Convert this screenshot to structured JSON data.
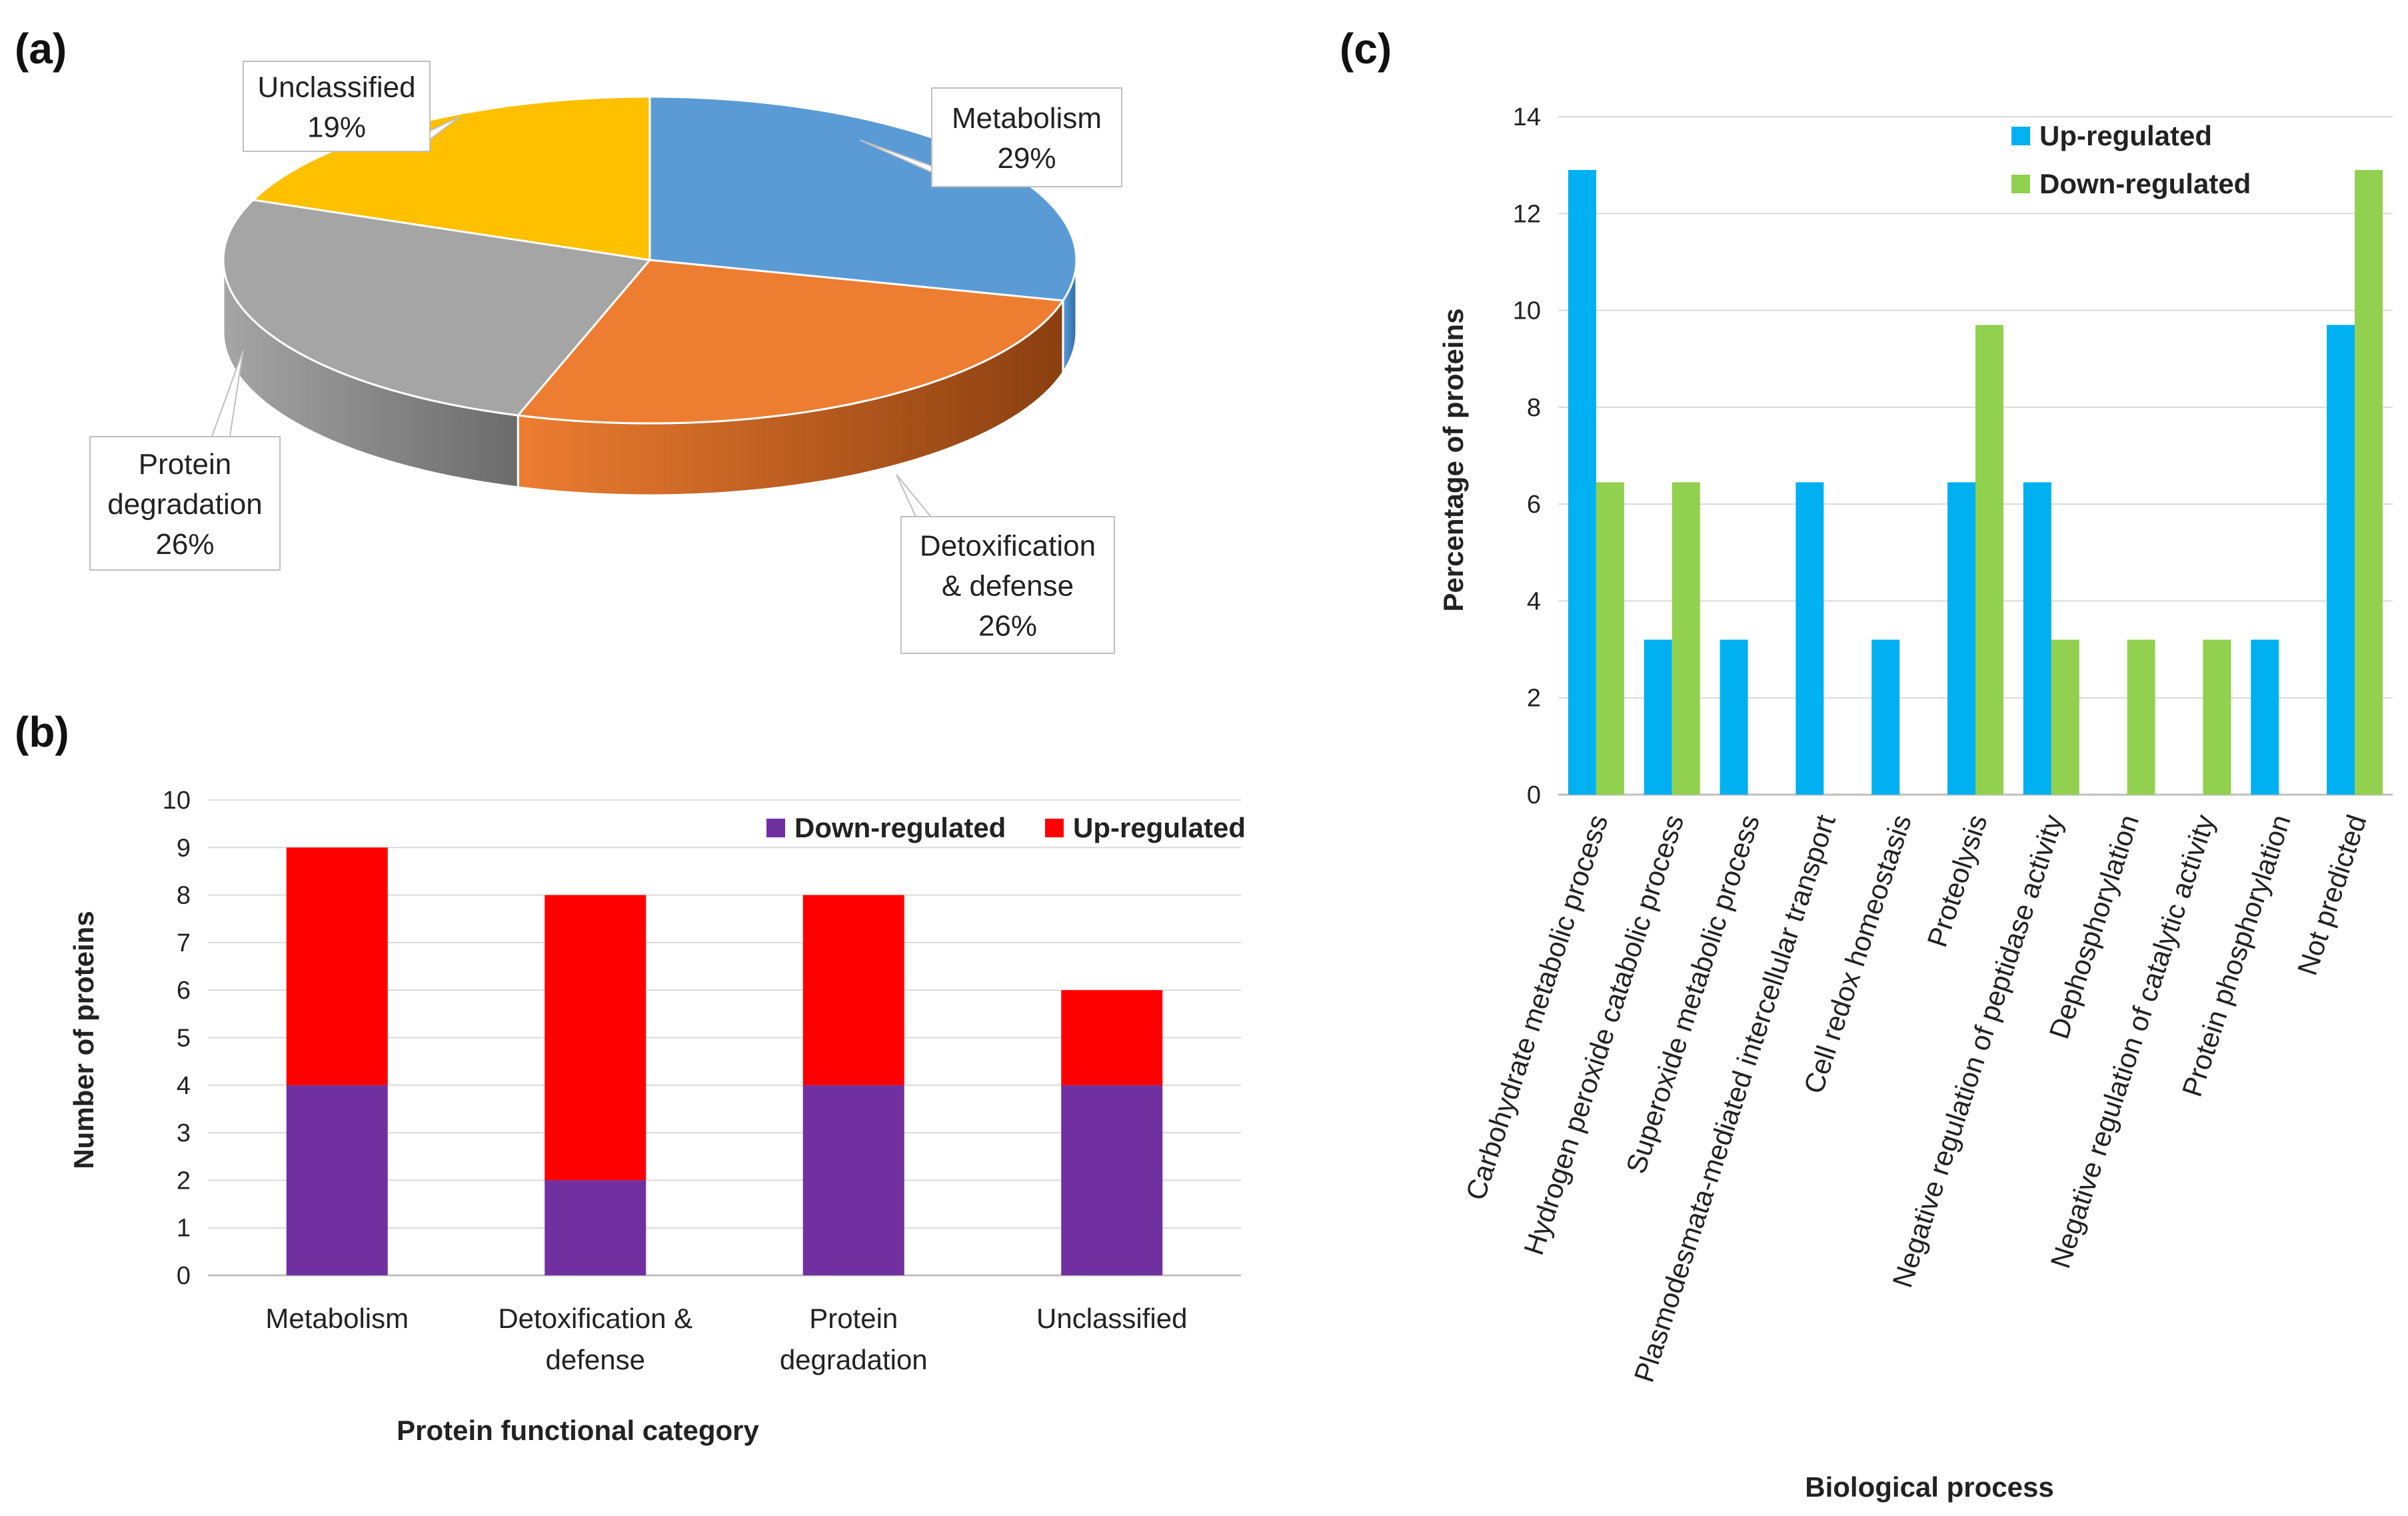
{
  "panels": {
    "a": "(a)",
    "b": "(b)",
    "c": "(c)"
  },
  "chart_data": [
    {
      "panel": "(a)",
      "type": "pie",
      "slices": [
        {
          "label": "Metabolism",
          "value": 29,
          "display": "29%",
          "color": "#5b9bd5",
          "side": "#2e6ba8"
        },
        {
          "label": "Detoxification & defense",
          "value": 26,
          "display": "26%",
          "color": "#ed7d31",
          "side": "#8a3f10"
        },
        {
          "label": "Protein degradation",
          "value": 26,
          "display": "26%",
          "color": "#a5a5a5",
          "side": "#6b6b6b"
        },
        {
          "label": "Unclassified",
          "value": 19,
          "display": "19%",
          "color": "#ffc000",
          "side": "#b38600"
        }
      ]
    },
    {
      "panel": "(b)",
      "type": "bar",
      "stacked": true,
      "categories": [
        "Metabolism",
        "Detoxification & defense",
        "Protein degradation",
        "Unclassified"
      ],
      "series": [
        {
          "name": "Down-regulated",
          "values": [
            4,
            2,
            4,
            4
          ],
          "color": "#7030a0"
        },
        {
          "name": "Up-regulated",
          "values": [
            5,
            6,
            4,
            2
          ],
          "color": "#ff0000"
        }
      ],
      "xlabel": "Protein functional category",
      "ylabel": "Number of proteins",
      "ylim": [
        0,
        10
      ],
      "yticks": [
        "0",
        "1",
        "2",
        "3",
        "4",
        "5",
        "6",
        "7",
        "8",
        "9",
        "10"
      ],
      "legend": "top-right"
    },
    {
      "panel": "(c)",
      "type": "bar",
      "stacked": false,
      "categories": [
        "Carbohydrate metabolic process",
        "Hydrogen peroxide catabolic process",
        "Superoxide metabolic process",
        "Plasmodesmata-mediated intercellular transport",
        "Cell redox homeostasis",
        "Proteolysis",
        "Negative regulation of peptidase activity",
        "Dephosphorylation",
        "Negative regulation of catalytic activity",
        "Protein phosphorylation",
        "Not predicted"
      ],
      "series": [
        {
          "name": "Up-regulated",
          "values": [
            12.9,
            3.2,
            3.2,
            6.45,
            3.2,
            6.45,
            6.45,
            0,
            0,
            3.2,
            9.7
          ],
          "color": "#00b0f0"
        },
        {
          "name": "Down-regulated",
          "values": [
            6.45,
            6.45,
            0,
            0,
            0,
            9.7,
            3.2,
            3.2,
            3.2,
            0,
            12.9
          ],
          "color": "#92d050"
        }
      ],
      "xlabel": "Biological process",
      "ylabel": "Percentage of proteins",
      "ylim": [
        0,
        14
      ],
      "yticks": [
        "0",
        "2",
        "4",
        "6",
        "8",
        "10",
        "12",
        "14"
      ],
      "legend": "top-center"
    }
  ]
}
